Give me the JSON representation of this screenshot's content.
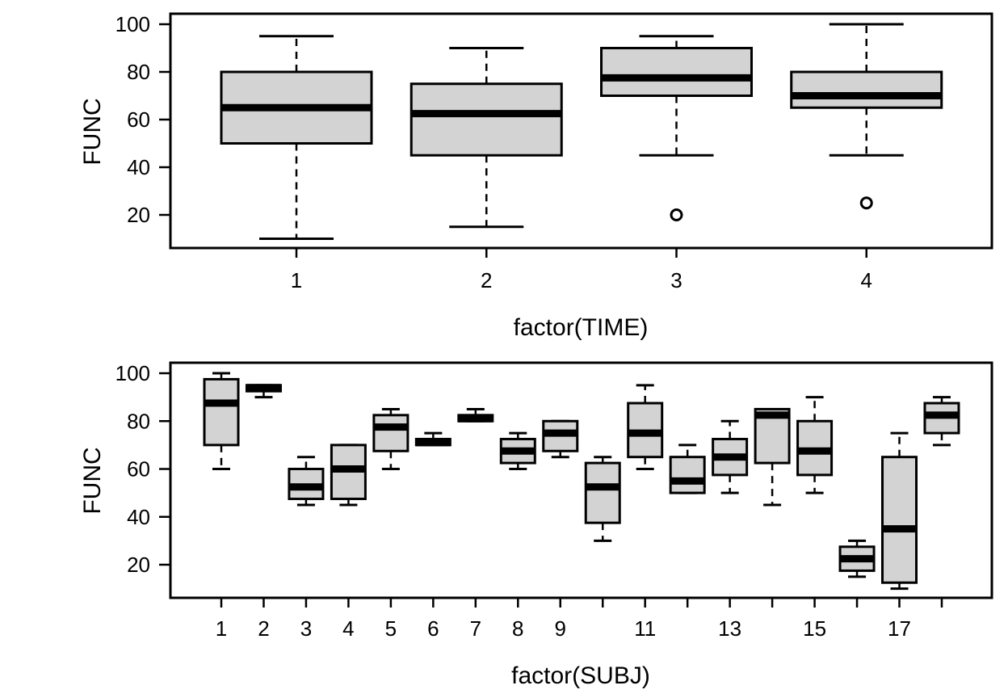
{
  "chart_data": [
    {
      "type": "box",
      "xlabel": "factor(TIME)",
      "ylabel": "FUNC",
      "ylim": [
        5,
        105
      ],
      "yticks": [
        20,
        40,
        60,
        80,
        100
      ],
      "colors": {
        "box_fill": "#d3d3d3",
        "stroke": "#000000"
      },
      "categories": [
        "1",
        "2",
        "3",
        "4"
      ],
      "tick_labels": [
        "1",
        "2",
        "3",
        "4"
      ],
      "boxes": [
        {
          "category": "1",
          "whisker_low": 10,
          "q1": 50,
          "median": 65,
          "q3": 80,
          "whisker_high": 95,
          "outliers": []
        },
        {
          "category": "2",
          "whisker_low": 15,
          "q1": 45,
          "median": 62.5,
          "q3": 75,
          "whisker_high": 90,
          "outliers": []
        },
        {
          "category": "3",
          "whisker_low": 45,
          "q1": 70,
          "median": 77.5,
          "q3": 90,
          "whisker_high": 95,
          "outliers": [
            20
          ]
        },
        {
          "category": "4",
          "whisker_low": 45,
          "q1": 65,
          "median": 70,
          "q3": 80,
          "whisker_high": 100,
          "outliers": [
            25
          ]
        }
      ]
    },
    {
      "type": "box",
      "xlabel": "factor(SUBJ)",
      "ylabel": "FUNC",
      "ylim": [
        5,
        105
      ],
      "yticks": [
        20,
        40,
        60,
        80,
        100
      ],
      "colors": {
        "box_fill": "#d3d3d3",
        "stroke": "#000000"
      },
      "categories": [
        "1",
        "2",
        "3",
        "4",
        "5",
        "6",
        "7",
        "8",
        "9",
        "10",
        "11",
        "12",
        "13",
        "14",
        "15",
        "16",
        "17",
        "18"
      ],
      "tick_labels": [
        "1",
        "2",
        "3",
        "4",
        "5",
        "6",
        "7",
        "8",
        "9",
        "",
        "11",
        "",
        "13",
        "",
        "15",
        "",
        "17",
        ""
      ],
      "boxes": [
        {
          "category": "1",
          "whisker_low": 60,
          "q1": 70,
          "median": 87.5,
          "q3": 97.5,
          "whisker_high": 100,
          "outliers": []
        },
        {
          "category": "2",
          "whisker_low": 90,
          "q1": 92.5,
          "median": 94,
          "q3": 95,
          "whisker_high": 95,
          "outliers": []
        },
        {
          "category": "3",
          "whisker_low": 45,
          "q1": 47.5,
          "median": 52.5,
          "q3": 60,
          "whisker_high": 65,
          "outliers": []
        },
        {
          "category": "4",
          "whisker_low": 45,
          "q1": 47.5,
          "median": 60,
          "q3": 70,
          "whisker_high": 70,
          "outliers": []
        },
        {
          "category": "5",
          "whisker_low": 60,
          "q1": 67.5,
          "median": 77.5,
          "q3": 82.5,
          "whisker_high": 85,
          "outliers": []
        },
        {
          "category": "6",
          "whisker_low": 70,
          "q1": 70,
          "median": 71,
          "q3": 72.5,
          "whisker_high": 75,
          "outliers": []
        },
        {
          "category": "7",
          "whisker_low": 80,
          "q1": 80,
          "median": 81,
          "q3": 82.5,
          "whisker_high": 85,
          "outliers": []
        },
        {
          "category": "8",
          "whisker_low": 60,
          "q1": 62.5,
          "median": 67.5,
          "q3": 72.5,
          "whisker_high": 75,
          "outliers": []
        },
        {
          "category": "9",
          "whisker_low": 65,
          "q1": 67.5,
          "median": 75,
          "q3": 80,
          "whisker_high": 80,
          "outliers": []
        },
        {
          "category": "10",
          "whisker_low": 30,
          "q1": 37.5,
          "median": 52.5,
          "q3": 62.5,
          "whisker_high": 65,
          "outliers": []
        },
        {
          "category": "11",
          "whisker_low": 60,
          "q1": 65,
          "median": 75,
          "q3": 87.5,
          "whisker_high": 95,
          "outliers": []
        },
        {
          "category": "12",
          "whisker_low": 50,
          "q1": 50,
          "median": 55,
          "q3": 65,
          "whisker_high": 70,
          "outliers": []
        },
        {
          "category": "13",
          "whisker_low": 50,
          "q1": 57.5,
          "median": 65,
          "q3": 72.5,
          "whisker_high": 80,
          "outliers": []
        },
        {
          "category": "14",
          "whisker_low": 45,
          "q1": 62.5,
          "median": 82.5,
          "q3": 85,
          "whisker_high": 85,
          "outliers": []
        },
        {
          "category": "15",
          "whisker_low": 50,
          "q1": 57.5,
          "median": 67.5,
          "q3": 80,
          "whisker_high": 90,
          "outliers": []
        },
        {
          "category": "16",
          "whisker_low": 15,
          "q1": 17.5,
          "median": 22.5,
          "q3": 27.5,
          "whisker_high": 30,
          "outliers": []
        },
        {
          "category": "17",
          "whisker_low": 10,
          "q1": 12.5,
          "median": 35,
          "q3": 65,
          "whisker_high": 75,
          "outliers": []
        },
        {
          "category": "18",
          "whisker_low": 70,
          "q1": 75,
          "median": 82.5,
          "q3": 87.5,
          "whisker_high": 90,
          "outliers": []
        }
      ]
    }
  ]
}
